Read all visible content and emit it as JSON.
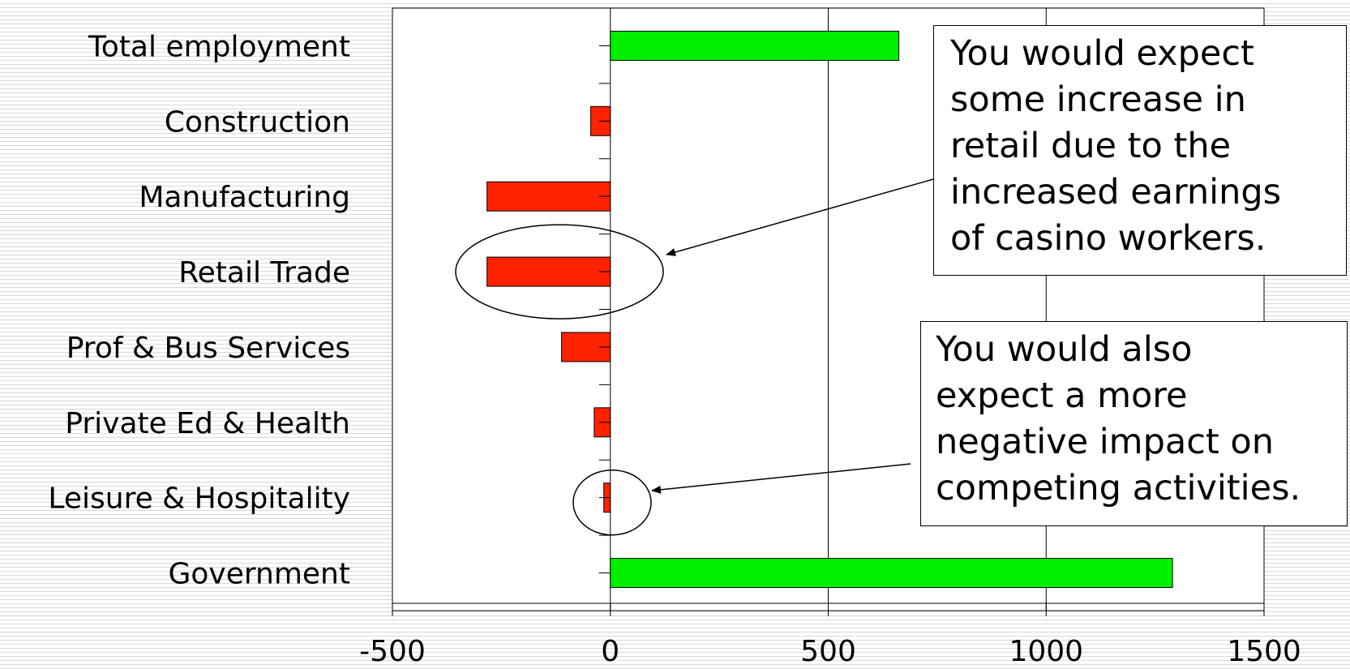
{
  "chart_data": {
    "type": "bar",
    "orientation": "horizontal",
    "categories": [
      "Total employment",
      "Construction",
      "Manufacturing",
      "Retail Trade",
      "Prof & Bus Services",
      "Private Ed & Health",
      "Leisure & Hospitality",
      "Government"
    ],
    "values": [
      662,
      -45,
      -283,
      -283,
      -112,
      -37,
      -15,
      1290
    ],
    "xlim": [
      -500,
      1500
    ],
    "xticks": [
      "-500",
      "0",
      "500",
      "1000",
      "1500"
    ],
    "grid": "vertical",
    "colors": {
      "positive": "#00ee00",
      "negative": "#ff2200"
    },
    "annotations": [
      {
        "id": "retail",
        "lines": [
          "You would expect",
          "some increase in",
          "retail due to the",
          "increased earnings",
          "of casino workers."
        ],
        "points_to": "Retail Trade"
      },
      {
        "id": "leisure",
        "lines": [
          "You would also",
          "expect a more",
          "negative impact on",
          "competing activities."
        ],
        "points_to": "Leisure & Hospitality"
      }
    ]
  }
}
